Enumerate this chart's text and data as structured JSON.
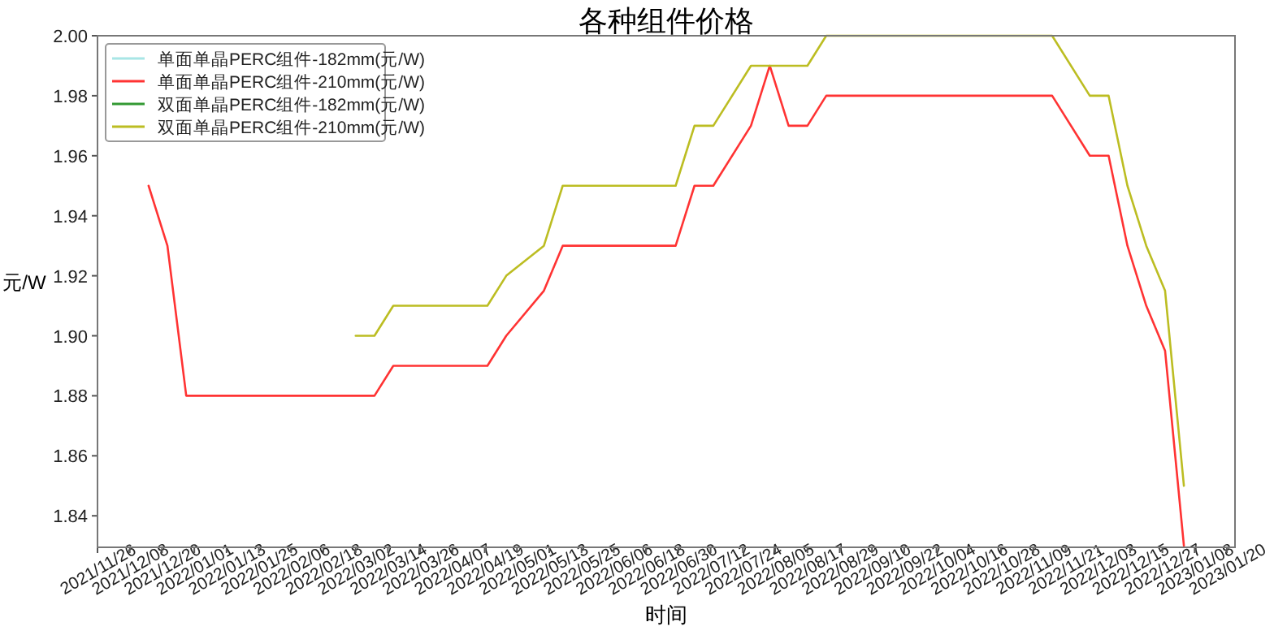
{
  "chart_data": {
    "type": "line",
    "title": "各种组件价格",
    "xlabel": "时间",
    "ylabel": "元/W",
    "xlim": [
      "2021-11-26",
      "2023-01-23"
    ],
    "ylim": [
      1.8295,
      2.0
    ],
    "xticks": [
      {
        "value": "2021-11-26",
        "label": "2021/11/26"
      },
      {
        "value": "2021-12-08",
        "label": "2021/12/08"
      },
      {
        "value": "2021-12-20",
        "label": "2021/12/20"
      },
      {
        "value": "2022-01-01",
        "label": "2022/01/01"
      },
      {
        "value": "2022-01-13",
        "label": "2022/01/13"
      },
      {
        "value": "2022-01-25",
        "label": "2022/01/25"
      },
      {
        "value": "2022-02-06",
        "label": "2022/02/06"
      },
      {
        "value": "2022-02-18",
        "label": "2022/02/18"
      },
      {
        "value": "2022-03-02",
        "label": "2022/03/02"
      },
      {
        "value": "2022-03-14",
        "label": "2022/03/14"
      },
      {
        "value": "2022-03-26",
        "label": "2022/03/26"
      },
      {
        "value": "2022-04-07",
        "label": "2022/04/07"
      },
      {
        "value": "2022-04-19",
        "label": "2022/04/19"
      },
      {
        "value": "2022-05-01",
        "label": "2022/05/01"
      },
      {
        "value": "2022-05-13",
        "label": "2022/05/13"
      },
      {
        "value": "2022-05-25",
        "label": "2022/05/25"
      },
      {
        "value": "2022-06-06",
        "label": "2022/06/06"
      },
      {
        "value": "2022-06-18",
        "label": "2022/06/18"
      },
      {
        "value": "2022-06-30",
        "label": "2022/06/30"
      },
      {
        "value": "2022-07-12",
        "label": "2022/07/12"
      },
      {
        "value": "2022-07-24",
        "label": "2022/07/24"
      },
      {
        "value": "2022-08-05",
        "label": "2022/08/05"
      },
      {
        "value": "2022-08-17",
        "label": "2022/08/17"
      },
      {
        "value": "2022-08-29",
        "label": "2022/08/29"
      },
      {
        "value": "2022-09-10",
        "label": "2022/09/10"
      },
      {
        "value": "2022-09-22",
        "label": "2022/09/22"
      },
      {
        "value": "2022-10-04",
        "label": "2022/10/04"
      },
      {
        "value": "2022-10-16",
        "label": "2022/10/16"
      },
      {
        "value": "2022-10-28",
        "label": "2022/10/28"
      },
      {
        "value": "2022-11-09",
        "label": "2022/11/09"
      },
      {
        "value": "2022-11-21",
        "label": "2022/11/21"
      },
      {
        "value": "2022-12-03",
        "label": "2022/12/03"
      },
      {
        "value": "2022-12-15",
        "label": "2022/12/15"
      },
      {
        "value": "2022-12-27",
        "label": "2022/12/27"
      },
      {
        "value": "2023-01-08",
        "label": "2023/01/08"
      },
      {
        "value": "2023-01-20",
        "label": "2023/01/20"
      }
    ],
    "yticks": [
      1.84,
      1.86,
      1.88,
      {
        "value": 1.9,
        "label": "1.90"
      },
      1.92,
      1.94,
      1.96,
      1.98,
      {
        "value": 2.0,
        "label": "2.00"
      }
    ],
    "grid": false,
    "legend": "top left",
    "marker": "none",
    "line_style": "solid",
    "series": [
      {
        "name": "单面单晶PERC组件-182mm(元/W)",
        "color": "#a8e6e6"
      },
      {
        "name": "单面单晶PERC组件-210mm(元/W)",
        "color": "#ff3333",
        "x": [
          "2021-12-15",
          "2021-12-22",
          "2021-12-29",
          "2022-03-09",
          "2022-03-16",
          "2022-04-20",
          "2022-04-27",
          "2022-05-11",
          "2022-05-18",
          "2022-06-29",
          "2022-07-06",
          "2022-07-13",
          "2022-07-27",
          "2022-08-03",
          "2022-08-10",
          "2022-08-17",
          "2022-08-24",
          "2022-11-16",
          "2022-11-30",
          "2022-12-07",
          "2022-12-14",
          "2022-12-21",
          "2022-12-28",
          "2023-01-04"
        ],
        "values": [
          1.95,
          1.93,
          1.88,
          1.88,
          1.89,
          1.89,
          1.9,
          1.915,
          1.93,
          1.93,
          1.95,
          1.95,
          1.97,
          1.99,
          1.97,
          1.97,
          1.98,
          1.98,
          1.96,
          1.96,
          1.93,
          1.91,
          1.895,
          1.83
        ]
      },
      {
        "name": "双面单晶PERC组件-182mm(元/W)",
        "color": "#339933"
      },
      {
        "name": "双面单晶PERC组件-210mm(元/W)",
        "color": "#bcbd22",
        "x": [
          "2022-03-02",
          "2022-03-09",
          "2022-03-16",
          "2022-04-20",
          "2022-04-27",
          "2022-05-11",
          "2022-05-18",
          "2022-06-29",
          "2022-07-06",
          "2022-07-13",
          "2022-07-27",
          "2022-08-17",
          "2022-08-24",
          "2022-11-16",
          "2022-11-30",
          "2022-12-07",
          "2022-12-14",
          "2022-12-21",
          "2022-12-28",
          "2023-01-04"
        ],
        "values": [
          1.9,
          1.9,
          1.91,
          1.91,
          1.92,
          1.93,
          1.95,
          1.95,
          1.97,
          1.97,
          1.99,
          1.99,
          2.0,
          2.0,
          1.98,
          1.98,
          1.95,
          1.93,
          1.915,
          1.85
        ]
      }
    ]
  }
}
